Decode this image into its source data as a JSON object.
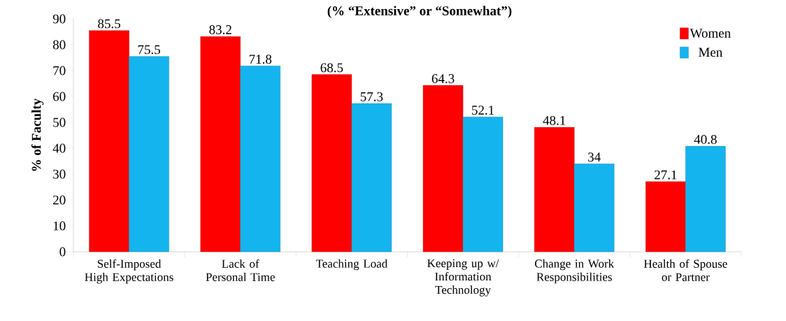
{
  "chart_data": {
    "type": "bar",
    "title": "(% “Extensive” or “Somewhat”)",
    "ylabel": "% of Faculty",
    "categories": [
      "Self-Imposed High Expectations",
      "Lack of Personal Time",
      "Teaching Load",
      "Keeping up w/ Information Technology",
      "Change in Work Responsibilities",
      "Health of Spouse or Partner"
    ],
    "series": [
      {
        "name": "Women",
        "color": "#ff0000",
        "values": [
          85.5,
          83.2,
          68.5,
          64.3,
          48.1,
          27.1
        ]
      },
      {
        "name": "Men",
        "color": "#14b4ee",
        "values": [
          75.5,
          71.8,
          57.3,
          52.1,
          34,
          40.8
        ]
      }
    ],
    "ylim": [
      0,
      90
    ],
    "yticks": [
      0,
      10,
      20,
      30,
      40,
      50,
      60,
      70,
      80,
      90
    ],
    "data_labels": true,
    "legend": "top right",
    "grid": false
  }
}
